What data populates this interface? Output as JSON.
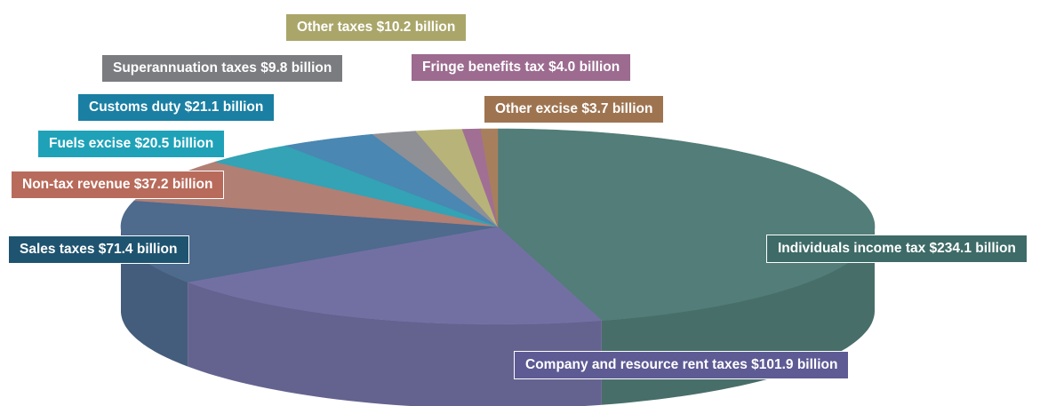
{
  "chart_data": {
    "type": "pie",
    "title": "",
    "unit": "$ billion",
    "slices": [
      {
        "label": "Individuals income tax $234.1 billion",
        "name": "Individuals income tax",
        "value": 234.1,
        "color": "#527d78"
      },
      {
        "label": "Company and resource rent taxes $101.9 billion",
        "name": "Company and resource rent taxes",
        "value": 101.9,
        "color": "#7270a3"
      },
      {
        "label": "Sales taxes $71.4 billion",
        "name": "Sales taxes",
        "value": 71.4,
        "color": "#4e6a8d"
      },
      {
        "label": "Non-tax revenue $37.2 billion",
        "name": "Non-tax revenue",
        "value": 37.2,
        "color": "#b27f74"
      },
      {
        "label": "Fuels excise $20.5 billion",
        "name": "Fuels excise",
        "value": 20.5,
        "color": "#33a3b5"
      },
      {
        "label": "Customs duty $21.1 billion",
        "name": "Customs duty",
        "value": 21.1,
        "color": "#4a87b3"
      },
      {
        "label": "Superannuation taxes $9.8 billion",
        "name": "Superannuation taxes",
        "value": 9.8,
        "color": "#8e9095"
      },
      {
        "label": "Other taxes $10.2 billion",
        "name": "Other taxes",
        "value": 10.2,
        "color": "#b8b479"
      },
      {
        "label": "Fringe benefits  tax $4.0 billion",
        "name": "Fringe benefits tax",
        "value": 4.0,
        "color": "#a16f94"
      },
      {
        "label": "Other excise $3.7 billion",
        "name": "Other excise",
        "value": 3.7,
        "color": "#a87f5c"
      }
    ],
    "label_colors": [
      "#3e6b67",
      "#5e5a94",
      "#1f5470",
      "#b86b5b",
      "#1fa2b8",
      "#1a7fa3",
      "#7a7c80",
      "#aaa66a",
      "#9c6b8f",
      "#9e7450"
    ]
  }
}
